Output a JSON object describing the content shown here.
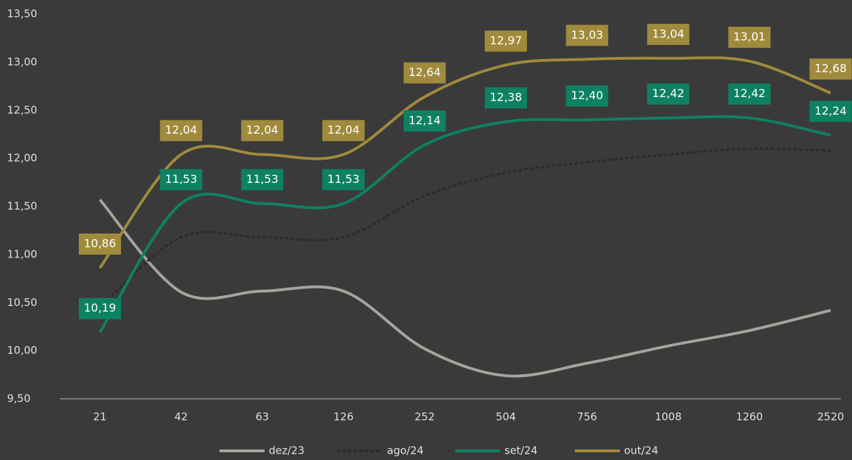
{
  "chart_data": {
    "type": "line",
    "categories": [
      "21",
      "42",
      "63",
      "126",
      "252",
      "504",
      "756",
      "1008",
      "1260",
      "2520"
    ],
    "series": [
      {
        "name": "dez/23",
        "color": "#a7a39d",
        "style": "solid",
        "values": [
          11.57,
          10.61,
          10.62,
          10.62,
          10.02,
          9.74,
          9.87,
          10.05,
          10.21,
          10.42
        ]
      },
      {
        "name": "ago/24",
        "color": "#2b2b2b",
        "style": "dotted",
        "values": [
          10.45,
          11.18,
          11.18,
          11.18,
          11.61,
          11.85,
          11.96,
          12.04,
          12.1,
          12.08
        ]
      },
      {
        "name": "set/24",
        "color": "#0e8163",
        "style": "solid",
        "values": [
          10.19,
          11.53,
          11.53,
          11.53,
          12.14,
          12.38,
          12.4,
          12.42,
          12.42,
          12.24
        ],
        "value_labels": [
          "10,19",
          "11,53",
          "11,53",
          "11,53",
          "12,14",
          "12,38",
          "12,40",
          "12,42",
          "12,42",
          "12,24"
        ]
      },
      {
        "name": "out/24",
        "color": "#a08a3c",
        "style": "solid",
        "values": [
          10.86,
          12.04,
          12.04,
          12.04,
          12.64,
          12.97,
          13.03,
          13.04,
          13.01,
          12.68
        ],
        "value_labels": [
          "10,86",
          "12,04",
          "12,04",
          "12,04",
          "12,64",
          "12,97",
          "13,03",
          "13,04",
          "13,01",
          "12,68"
        ]
      }
    ],
    "ylim": [
      9.5,
      13.5
    ],
    "yticks": [
      {
        "value": 9.5,
        "label": "9,50"
      },
      {
        "value": 10,
        "label": "10,00"
      },
      {
        "value": 10.5,
        "label": "10,50"
      },
      {
        "value": 11,
        "label": "11,00"
      },
      {
        "value": 11.5,
        "label": "11,50"
      },
      {
        "value": 12,
        "label": "12,00"
      },
      {
        "value": 12.5,
        "label": "12,50"
      },
      {
        "value": 13,
        "label": "13,00"
      },
      {
        "value": 13.5,
        "label": "13,50"
      }
    ],
    "grid": false,
    "legend": "bottom"
  }
}
